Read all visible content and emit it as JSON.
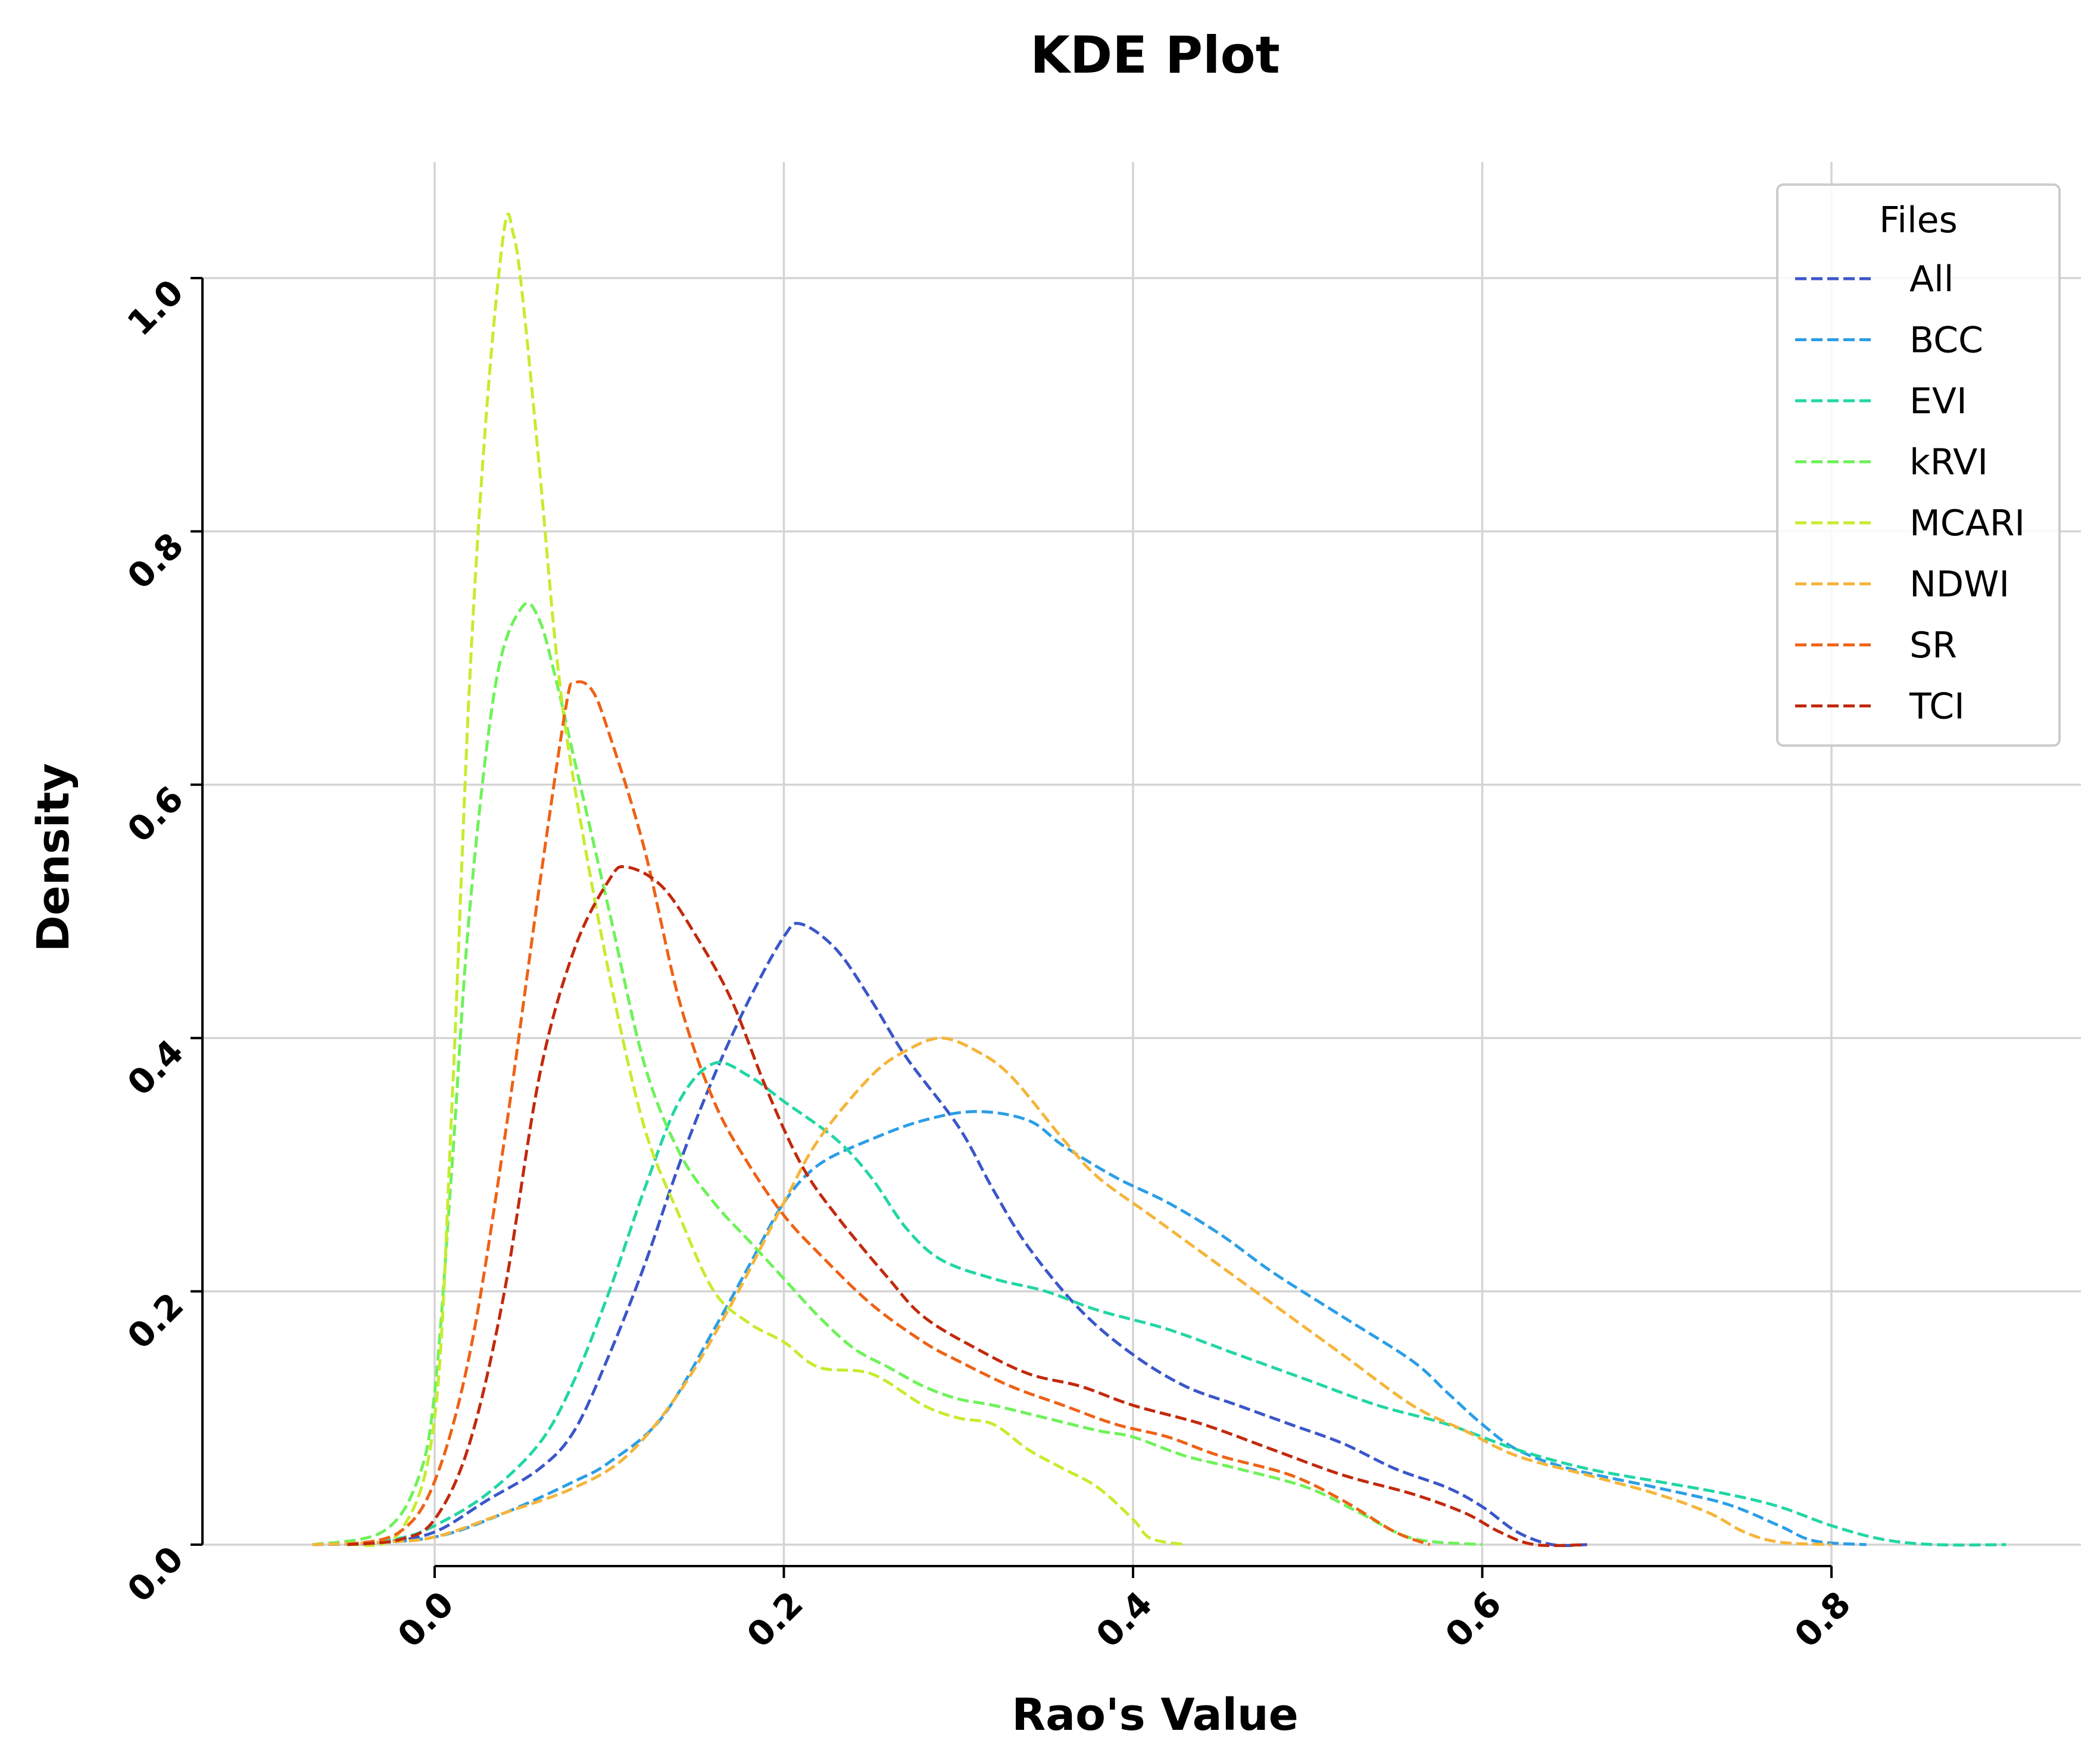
{
  "chart_data": {
    "type": "line",
    "title": "KDE Plot",
    "xlabel": "Rao's Value",
    "ylabel": "Density",
    "xlim": [
      -0.13,
      0.94
    ],
    "ylim": [
      0.0,
      1.09
    ],
    "x_ticks": [
      0.0,
      0.2,
      0.4,
      0.6,
      0.8
    ],
    "x_tick_labels": [
      "0.0",
      "0.2",
      "0.4",
      "0.6",
      "0.8"
    ],
    "y_ticks": [
      0.0,
      0.2,
      0.4,
      0.6,
      0.8,
      1.0
    ],
    "y_tick_labels": [
      "0.0",
      "0.2",
      "0.4",
      "0.6",
      "0.8",
      "1.0"
    ],
    "grid": true,
    "legend": {
      "title": "Files",
      "position": "top-right"
    },
    "series": [
      {
        "name": "All",
        "color": "#3a56c9",
        "points": [
          [
            -0.07,
            0
          ],
          [
            -0.03,
            0.002
          ],
          [
            0.0,
            0.01
          ],
          [
            0.03,
            0.035
          ],
          [
            0.06,
            0.06
          ],
          [
            0.08,
            0.09
          ],
          [
            0.1,
            0.15
          ],
          [
            0.12,
            0.22
          ],
          [
            0.14,
            0.3
          ],
          [
            0.16,
            0.37
          ],
          [
            0.18,
            0.43
          ],
          [
            0.2,
            0.48
          ],
          [
            0.21,
            0.49
          ],
          [
            0.23,
            0.47
          ],
          [
            0.25,
            0.43
          ],
          [
            0.27,
            0.385
          ],
          [
            0.3,
            0.33
          ],
          [
            0.32,
            0.28
          ],
          [
            0.34,
            0.235
          ],
          [
            0.37,
            0.185
          ],
          [
            0.4,
            0.15
          ],
          [
            0.43,
            0.125
          ],
          [
            0.46,
            0.11
          ],
          [
            0.49,
            0.095
          ],
          [
            0.52,
            0.08
          ],
          [
            0.55,
            0.06
          ],
          [
            0.58,
            0.045
          ],
          [
            0.6,
            0.03
          ],
          [
            0.62,
            0.01
          ],
          [
            0.64,
            0.0
          ],
          [
            0.66,
            0.0
          ]
        ]
      },
      {
        "name": "BCC",
        "color": "#2c9ee6",
        "points": [
          [
            -0.05,
            0
          ],
          [
            0.0,
            0.006
          ],
          [
            0.04,
            0.025
          ],
          [
            0.08,
            0.05
          ],
          [
            0.1,
            0.065
          ],
          [
            0.13,
            0.1
          ],
          [
            0.16,
            0.17
          ],
          [
            0.18,
            0.22
          ],
          [
            0.2,
            0.27
          ],
          [
            0.22,
            0.3
          ],
          [
            0.25,
            0.32
          ],
          [
            0.28,
            0.335
          ],
          [
            0.31,
            0.342
          ],
          [
            0.34,
            0.335
          ],
          [
            0.36,
            0.315
          ],
          [
            0.39,
            0.29
          ],
          [
            0.42,
            0.27
          ],
          [
            0.45,
            0.245
          ],
          [
            0.48,
            0.215
          ],
          [
            0.52,
            0.18
          ],
          [
            0.56,
            0.145
          ],
          [
            0.58,
            0.12
          ],
          [
            0.6,
            0.095
          ],
          [
            0.62,
            0.075
          ],
          [
            0.65,
            0.06
          ],
          [
            0.7,
            0.045
          ],
          [
            0.74,
            0.032
          ],
          [
            0.77,
            0.015
          ],
          [
            0.79,
            0.003
          ],
          [
            0.82,
            0.0
          ]
        ]
      },
      {
        "name": "EVI",
        "color": "#22d6a4",
        "points": [
          [
            -0.05,
            0
          ],
          [
            -0.02,
            0.005
          ],
          [
            0.0,
            0.015
          ],
          [
            0.03,
            0.04
          ],
          [
            0.06,
            0.08
          ],
          [
            0.08,
            0.13
          ],
          [
            0.1,
            0.2
          ],
          [
            0.12,
            0.28
          ],
          [
            0.14,
            0.35
          ],
          [
            0.16,
            0.38
          ],
          [
            0.18,
            0.37
          ],
          [
            0.2,
            0.35
          ],
          [
            0.23,
            0.32
          ],
          [
            0.25,
            0.29
          ],
          [
            0.27,
            0.25
          ],
          [
            0.29,
            0.225
          ],
          [
            0.32,
            0.21
          ],
          [
            0.35,
            0.2
          ],
          [
            0.38,
            0.185
          ],
          [
            0.42,
            0.17
          ],
          [
            0.46,
            0.15
          ],
          [
            0.5,
            0.13
          ],
          [
            0.54,
            0.11
          ],
          [
            0.58,
            0.095
          ],
          [
            0.62,
            0.075
          ],
          [
            0.66,
            0.06
          ],
          [
            0.7,
            0.05
          ],
          [
            0.74,
            0.04
          ],
          [
            0.77,
            0.03
          ],
          [
            0.8,
            0.015
          ],
          [
            0.83,
            0.004
          ],
          [
            0.86,
            0.0
          ],
          [
            0.9,
            0.0
          ]
        ]
      },
      {
        "name": "kRVI",
        "color": "#6ef25a",
        "points": [
          [
            -0.07,
            0
          ],
          [
            -0.03,
            0.01
          ],
          [
            -0.01,
            0.05
          ],
          [
            0.0,
            0.12
          ],
          [
            0.01,
            0.3
          ],
          [
            0.02,
            0.5
          ],
          [
            0.035,
            0.68
          ],
          [
            0.05,
            0.74
          ],
          [
            0.06,
            0.73
          ],
          [
            0.07,
            0.68
          ],
          [
            0.08,
            0.62
          ],
          [
            0.1,
            0.5
          ],
          [
            0.12,
            0.38
          ],
          [
            0.14,
            0.31
          ],
          [
            0.16,
            0.27
          ],
          [
            0.18,
            0.24
          ],
          [
            0.2,
            0.21
          ],
          [
            0.22,
            0.18
          ],
          [
            0.24,
            0.155
          ],
          [
            0.26,
            0.14
          ],
          [
            0.28,
            0.125
          ],
          [
            0.3,
            0.115
          ],
          [
            0.32,
            0.11
          ],
          [
            0.35,
            0.1
          ],
          [
            0.38,
            0.09
          ],
          [
            0.4,
            0.085
          ],
          [
            0.43,
            0.07
          ],
          [
            0.46,
            0.06
          ],
          [
            0.5,
            0.045
          ],
          [
            0.53,
            0.025
          ],
          [
            0.56,
            0.005
          ],
          [
            0.6,
            0.0
          ]
        ]
      },
      {
        "name": "MCARI",
        "color": "#c6ec2e",
        "points": [
          [
            -0.05,
            0
          ],
          [
            -0.02,
            0.01
          ],
          [
            0.0,
            0.1
          ],
          [
            0.01,
            0.35
          ],
          [
            0.02,
            0.68
          ],
          [
            0.03,
            0.9
          ],
          [
            0.04,
            1.04
          ],
          [
            0.045,
            1.035
          ],
          [
            0.05,
            0.99
          ],
          [
            0.06,
            0.85
          ],
          [
            0.07,
            0.7
          ],
          [
            0.08,
            0.6
          ],
          [
            0.1,
            0.45
          ],
          [
            0.12,
            0.33
          ],
          [
            0.14,
            0.26
          ],
          [
            0.16,
            0.2
          ],
          [
            0.18,
            0.175
          ],
          [
            0.2,
            0.16
          ],
          [
            0.22,
            0.14
          ],
          [
            0.25,
            0.135
          ],
          [
            0.28,
            0.11
          ],
          [
            0.3,
            0.1
          ],
          [
            0.32,
            0.095
          ],
          [
            0.34,
            0.075
          ],
          [
            0.36,
            0.06
          ],
          [
            0.38,
            0.045
          ],
          [
            0.4,
            0.02
          ],
          [
            0.41,
            0.005
          ],
          [
            0.43,
            0.0
          ]
        ]
      },
      {
        "name": "NDWI",
        "color": "#f5b53a",
        "points": [
          [
            -0.07,
            0
          ],
          [
            -0.03,
            0.002
          ],
          [
            0.0,
            0.006
          ],
          [
            0.04,
            0.025
          ],
          [
            0.08,
            0.045
          ],
          [
            0.11,
            0.07
          ],
          [
            0.14,
            0.12
          ],
          [
            0.17,
            0.19
          ],
          [
            0.2,
            0.27
          ],
          [
            0.22,
            0.32
          ],
          [
            0.25,
            0.37
          ],
          [
            0.27,
            0.39
          ],
          [
            0.29,
            0.4
          ],
          [
            0.31,
            0.39
          ],
          [
            0.33,
            0.37
          ],
          [
            0.36,
            0.32
          ],
          [
            0.38,
            0.29
          ],
          [
            0.41,
            0.26
          ],
          [
            0.44,
            0.23
          ],
          [
            0.48,
            0.19
          ],
          [
            0.52,
            0.15
          ],
          [
            0.56,
            0.11
          ],
          [
            0.59,
            0.09
          ],
          [
            0.62,
            0.07
          ],
          [
            0.66,
            0.055
          ],
          [
            0.7,
            0.04
          ],
          [
            0.73,
            0.025
          ],
          [
            0.75,
            0.01
          ],
          [
            0.77,
            0.002
          ],
          [
            0.8,
            0.0
          ]
        ]
      },
      {
        "name": "SR",
        "color": "#ee6216",
        "points": [
          [
            -0.05,
            0
          ],
          [
            -0.02,
            0.01
          ],
          [
            0.0,
            0.05
          ],
          [
            0.02,
            0.15
          ],
          [
            0.04,
            0.32
          ],
          [
            0.06,
            0.52
          ],
          [
            0.075,
            0.66
          ],
          [
            0.08,
            0.68
          ],
          [
            0.09,
            0.675
          ],
          [
            0.1,
            0.64
          ],
          [
            0.12,
            0.55
          ],
          [
            0.14,
            0.43
          ],
          [
            0.16,
            0.35
          ],
          [
            0.18,
            0.3
          ],
          [
            0.2,
            0.26
          ],
          [
            0.22,
            0.23
          ],
          [
            0.25,
            0.19
          ],
          [
            0.28,
            0.16
          ],
          [
            0.3,
            0.145
          ],
          [
            0.33,
            0.125
          ],
          [
            0.36,
            0.11
          ],
          [
            0.39,
            0.095
          ],
          [
            0.42,
            0.085
          ],
          [
            0.45,
            0.07
          ],
          [
            0.49,
            0.055
          ],
          [
            0.52,
            0.035
          ],
          [
            0.55,
            0.01
          ],
          [
            0.57,
            0.0
          ]
        ]
      },
      {
        "name": "TCI",
        "color": "#c2290c",
        "points": [
          [
            -0.05,
            0
          ],
          [
            -0.02,
            0.004
          ],
          [
            0.0,
            0.02
          ],
          [
            0.02,
            0.08
          ],
          [
            0.04,
            0.2
          ],
          [
            0.06,
            0.37
          ],
          [
            0.08,
            0.47
          ],
          [
            0.1,
            0.525
          ],
          [
            0.11,
            0.535
          ],
          [
            0.13,
            0.52
          ],
          [
            0.15,
            0.48
          ],
          [
            0.17,
            0.43
          ],
          [
            0.19,
            0.36
          ],
          [
            0.21,
            0.3
          ],
          [
            0.23,
            0.26
          ],
          [
            0.26,
            0.21
          ],
          [
            0.28,
            0.18
          ],
          [
            0.31,
            0.155
          ],
          [
            0.34,
            0.135
          ],
          [
            0.37,
            0.125
          ],
          [
            0.4,
            0.11
          ],
          [
            0.44,
            0.095
          ],
          [
            0.48,
            0.075
          ],
          [
            0.52,
            0.055
          ],
          [
            0.56,
            0.04
          ],
          [
            0.59,
            0.025
          ],
          [
            0.61,
            0.01
          ],
          [
            0.63,
            0.0
          ],
          [
            0.66,
            0.0
          ]
        ]
      }
    ]
  }
}
